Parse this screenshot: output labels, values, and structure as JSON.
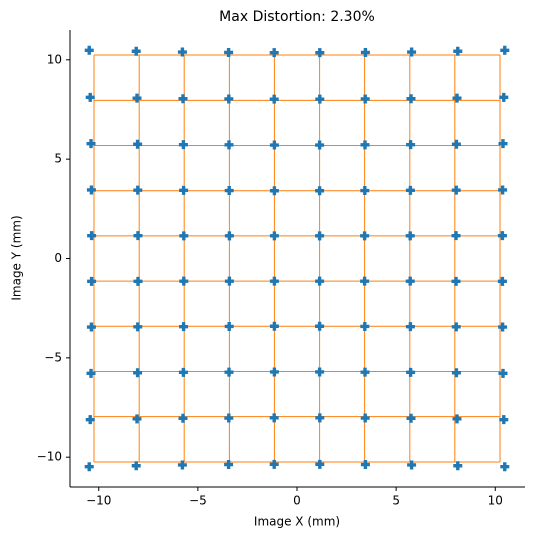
{
  "chart_data": {
    "type": "scatter",
    "title": "Max Distortion: 2.30%",
    "xlabel": "Image X (mm)",
    "ylabel": "Image Y (mm)",
    "xlim": [
      -11.45,
      11.5
    ],
    "ylim": [
      -11.5,
      11.5
    ],
    "xticks": [
      {
        "value": -10,
        "label": "−10"
      },
      {
        "value": -5,
        "label": "−5"
      },
      0,
      5,
      10
    ],
    "yticks": [
      {
        "value": -10,
        "label": "−10"
      },
      {
        "value": -5,
        "label": "−5"
      },
      0,
      5,
      10
    ],
    "ideal_grid": {
      "color": "#ff7f0e",
      "x": [
        -10.24,
        -7.96,
        -5.69,
        -3.41,
        -1.14,
        1.14,
        3.41,
        5.69,
        7.96,
        10.24
      ],
      "y": [
        10.24,
        7.96,
        5.69,
        3.41,
        1.14,
        -1.14,
        -3.41,
        -5.69,
        -7.96,
        -10.24
      ]
    },
    "series": [
      {
        "color": "#1f77b4",
        "x": [
          -10.48,
          -8.11,
          -5.78,
          -3.45,
          -1.15,
          1.15,
          3.45,
          5.78,
          8.11,
          10.48,
          -10.43,
          -8.07,
          -5.75,
          -3.44,
          -1.15,
          1.15,
          3.44,
          5.75,
          8.07,
          10.43,
          -10.39,
          -8.04,
          -5.73,
          -3.43,
          -1.14,
          1.14,
          3.43,
          5.73,
          8.04,
          10.39,
          -10.37,
          -8.03,
          -5.72,
          -3.42,
          -1.14,
          1.14,
          3.42,
          5.72,
          8.03,
          10.37,
          -10.36,
          -8.02,
          -5.71,
          -3.41,
          -1.14,
          1.14,
          3.41,
          5.71,
          8.02,
          10.36,
          -10.36,
          -8.02,
          -5.71,
          -3.41,
          -1.14,
          1.14,
          3.41,
          5.71,
          8.02,
          10.36,
          -10.37,
          -8.03,
          -5.72,
          -3.42,
          -1.14,
          1.14,
          3.42,
          5.72,
          8.03,
          10.37,
          -10.39,
          -8.04,
          -5.73,
          -3.43,
          -1.14,
          1.14,
          3.43,
          5.73,
          8.04,
          10.39,
          -10.43,
          -8.07,
          -5.75,
          -3.44,
          -1.15,
          1.15,
          3.44,
          5.75,
          8.07,
          10.43,
          -10.48,
          -8.11,
          -5.78,
          -3.45,
          -1.15,
          1.15,
          3.45,
          5.78,
          8.11,
          10.48
        ],
        "values": [
          10.48,
          10.43,
          10.39,
          10.37,
          10.36,
          10.36,
          10.37,
          10.39,
          10.43,
          10.48,
          8.11,
          8.07,
          8.04,
          8.03,
          8.02,
          8.02,
          8.03,
          8.04,
          8.07,
          8.11,
          5.78,
          5.75,
          5.73,
          5.72,
          5.71,
          5.71,
          5.72,
          5.73,
          5.75,
          5.78,
          3.45,
          3.44,
          3.43,
          3.42,
          3.41,
          3.41,
          3.42,
          3.43,
          3.44,
          3.45,
          1.15,
          1.15,
          1.14,
          1.14,
          1.14,
          1.14,
          1.14,
          1.14,
          1.15,
          1.15,
          -1.15,
          -1.15,
          -1.14,
          -1.14,
          -1.14,
          -1.14,
          -1.14,
          -1.14,
          -1.15,
          -1.15,
          -3.45,
          -3.44,
          -3.43,
          -3.42,
          -3.41,
          -3.41,
          -3.42,
          -3.43,
          -3.44,
          -3.45,
          -5.78,
          -5.75,
          -5.73,
          -5.72,
          -5.71,
          -5.71,
          -5.72,
          -5.73,
          -5.75,
          -5.78,
          -8.11,
          -8.07,
          -8.04,
          -8.03,
          -8.02,
          -8.02,
          -8.03,
          -8.04,
          -8.07,
          -8.11,
          -10.48,
          -10.43,
          -10.39,
          -10.37,
          -10.36,
          -10.36,
          -10.37,
          -10.39,
          -10.43,
          -10.48
        ]
      }
    ]
  }
}
